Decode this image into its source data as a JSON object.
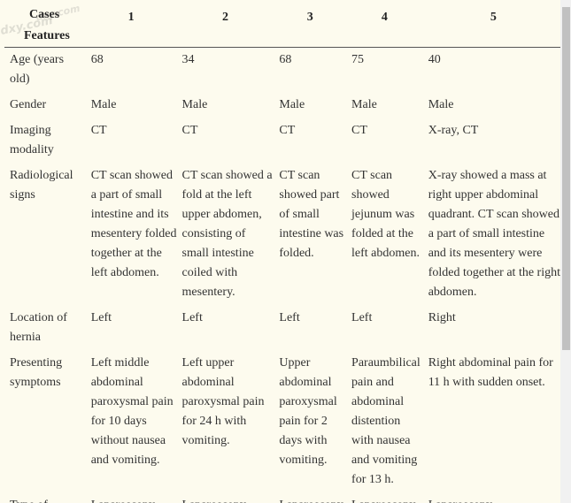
{
  "table": {
    "header": {
      "corner_top": "Cases",
      "corner_bottom": "Features",
      "cases": [
        "1",
        "2",
        "3",
        "4",
        "5"
      ]
    },
    "rows": [
      {
        "feature": "Age (years old)",
        "values": [
          "68",
          "34",
          "68",
          "75",
          "40"
        ]
      },
      {
        "feature": "Gender",
        "values": [
          "Male",
          "Male",
          "Male",
          "Male",
          "Male"
        ]
      },
      {
        "feature": "Imaging modality",
        "values": [
          "CT",
          "CT",
          "CT",
          "CT",
          "X-ray, CT"
        ]
      },
      {
        "feature": "Radiological signs",
        "values": [
          "CT scan showed a part of small intestine and its mesentery folded together at the left abdomen.",
          "CT scan showed a fold at the left upper abdomen, consisting of small intestine coiled with mesentery.",
          "CT scan showed part of small intestine was folded.",
          "CT scan showed jejunum was folded at the left abdomen.",
          "X-ray showed a mass at right upper abdominal quadrant. CT scan showed a part of small intestine and its mesentery were folded together at the right abdomen."
        ]
      },
      {
        "feature": "Location of hernia",
        "values": [
          "Left",
          "Left",
          "Left",
          "Left",
          "Right"
        ]
      },
      {
        "feature": "Presenting symptoms",
        "values": [
          "Left middle abdominal paroxysmal pain for 10 days without nausea and vomiting.",
          "Left upper abdominal paroxysmal pain for 24 h with vomiting.",
          "Upper abdominal paroxysmal pain for 2 days with vomiting.",
          "Paraumbilical pain and abdominal distention with nausea and vomiting for 13 h.",
          "Right abdominal pain for 11 h with sudden onset."
        ]
      },
      {
        "feature": "Type of",
        "values": [
          "Laparoscopy",
          "Laparoscopy",
          "Laparoscopy",
          "Laparoscopy",
          "Laparoscopy"
        ]
      }
    ]
  },
  "watermark_text": "dxy.com"
}
